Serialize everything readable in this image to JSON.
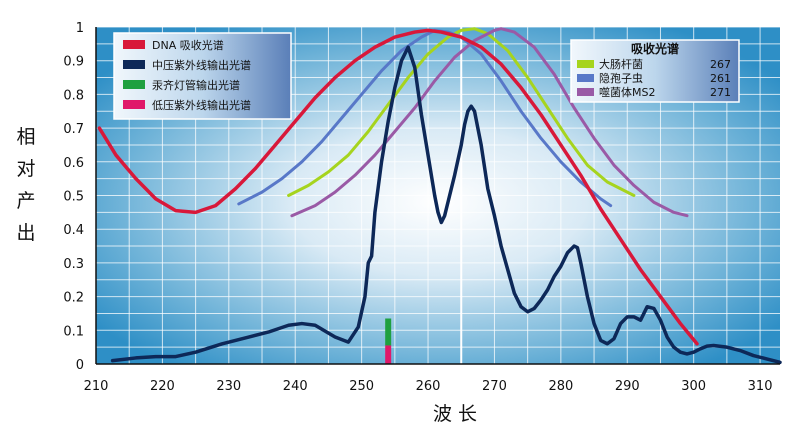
{
  "chart_data": {
    "type": "line",
    "xlabel": "波 长",
    "ylabel": "相对产出",
    "xlim": [
      210,
      313
    ],
    "ylim": [
      0,
      1
    ],
    "xticks": [
      "210",
      "220",
      "230",
      "240",
      "250",
      "260",
      "270",
      "280",
      "290",
      "300",
      "310"
    ],
    "yticks": [
      "0",
      "0.1",
      "0.2",
      "0.3",
      "0.4",
      "0.5",
      "0.6",
      "0.7",
      "0.8",
      "0.9",
      "1"
    ],
    "grid": true,
    "reference_line_x": 265,
    "series": [
      {
        "name": "DNA 吸收光谱",
        "color": "#d8183a",
        "points": [
          [
            210.5,
            0.7
          ],
          [
            213,
            0.62
          ],
          [
            216,
            0.55
          ],
          [
            219,
            0.49
          ],
          [
            222,
            0.455
          ],
          [
            225,
            0.45
          ],
          [
            228,
            0.47
          ],
          [
            231,
            0.52
          ],
          [
            234,
            0.58
          ],
          [
            237,
            0.65
          ],
          [
            240,
            0.72
          ],
          [
            243,
            0.79
          ],
          [
            246,
            0.85
          ],
          [
            249,
            0.9
          ],
          [
            252,
            0.94
          ],
          [
            255,
            0.97
          ],
          [
            258,
            0.985
          ],
          [
            260,
            0.99
          ],
          [
            262,
            0.985
          ],
          [
            265,
            0.97
          ],
          [
            268,
            0.94
          ],
          [
            271,
            0.89
          ],
          [
            274,
            0.82
          ],
          [
            277,
            0.74
          ],
          [
            280,
            0.65
          ],
          [
            283,
            0.56
          ],
          [
            286,
            0.46
          ],
          [
            289,
            0.37
          ],
          [
            292,
            0.28
          ],
          [
            295,
            0.2
          ],
          [
            298,
            0.12
          ],
          [
            300.5,
            0.06
          ]
        ]
      },
      {
        "name": "中压紫外线输出光谱",
        "color": "#0d2858",
        "points": [
          [
            212.5,
            0.01
          ],
          [
            216,
            0.018
          ],
          [
            219,
            0.022
          ],
          [
            222,
            0.022
          ],
          [
            225,
            0.035
          ],
          [
            229,
            0.06
          ],
          [
            233,
            0.08
          ],
          [
            236,
            0.095
          ],
          [
            239,
            0.115
          ],
          [
            241,
            0.12
          ],
          [
            243,
            0.115
          ],
          [
            246,
            0.08
          ],
          [
            248,
            0.065
          ],
          [
            249.5,
            0.11
          ],
          [
            250.5,
            0.2
          ],
          [
            251,
            0.3
          ],
          [
            251.5,
            0.32
          ],
          [
            252,
            0.45
          ],
          [
            253,
            0.6
          ],
          [
            254,
            0.72
          ],
          [
            255,
            0.82
          ],
          [
            256,
            0.9
          ],
          [
            257,
            0.94
          ],
          [
            258,
            0.88
          ],
          [
            259,
            0.74
          ],
          [
            260,
            0.62
          ],
          [
            261,
            0.5
          ],
          [
            261.5,
            0.45
          ],
          [
            262,
            0.42
          ],
          [
            262.5,
            0.44
          ],
          [
            263,
            0.48
          ],
          [
            264,
            0.56
          ],
          [
            265,
            0.65
          ],
          [
            265.5,
            0.71
          ],
          [
            266,
            0.75
          ],
          [
            266.5,
            0.765
          ],
          [
            267,
            0.75
          ],
          [
            268,
            0.65
          ],
          [
            269,
            0.52
          ],
          [
            270,
            0.44
          ],
          [
            271,
            0.35
          ],
          [
            272,
            0.28
          ],
          [
            273,
            0.21
          ],
          [
            274,
            0.17
          ],
          [
            275,
            0.155
          ],
          [
            276,
            0.165
          ],
          [
            277,
            0.19
          ],
          [
            278,
            0.22
          ],
          [
            279,
            0.26
          ],
          [
            280,
            0.29
          ],
          [
            281,
            0.33
          ],
          [
            282,
            0.35
          ],
          [
            282.5,
            0.345
          ],
          [
            283,
            0.3
          ],
          [
            284,
            0.2
          ],
          [
            285,
            0.12
          ],
          [
            286,
            0.07
          ],
          [
            287,
            0.06
          ],
          [
            288,
            0.075
          ],
          [
            289,
            0.12
          ],
          [
            290,
            0.14
          ],
          [
            291,
            0.14
          ],
          [
            292,
            0.13
          ],
          [
            292.5,
            0.15
          ],
          [
            293,
            0.17
          ],
          [
            294,
            0.165
          ],
          [
            295,
            0.13
          ],
          [
            296,
            0.08
          ],
          [
            297,
            0.05
          ],
          [
            298,
            0.035
          ],
          [
            299,
            0.03
          ],
          [
            300,
            0.035
          ],
          [
            301,
            0.045
          ],
          [
            302,
            0.053
          ],
          [
            303,
            0.055
          ],
          [
            305,
            0.05
          ],
          [
            307,
            0.04
          ],
          [
            309,
            0.025
          ],
          [
            311,
            0.015
          ],
          [
            313,
            0.005
          ]
        ]
      },
      {
        "name": "汞齐灯管输出光谱",
        "color": "#1fa040",
        "points": [
          [
            254,
            0.055
          ],
          [
            254,
            0.135
          ]
        ]
      },
      {
        "name": "低压紫外线输出光谱",
        "color": "#e0186a",
        "points": [
          [
            254,
            0.0
          ],
          [
            254,
            0.055
          ]
        ]
      }
    ],
    "action_spectra": {
      "title": "吸收光谱",
      "series": [
        {
          "name": "大肠杆菌",
          "value": "267",
          "color": "#a6d41e",
          "points": [
            [
              239,
              0.5
            ],
            [
              242,
              0.53
            ],
            [
              245,
              0.57
            ],
            [
              248,
              0.62
            ],
            [
              251,
              0.69
            ],
            [
              254,
              0.77
            ],
            [
              257,
              0.85
            ],
            [
              260,
              0.92
            ],
            [
              263,
              0.97
            ],
            [
              265,
              0.99
            ],
            [
              267,
              0.995
            ],
            [
              269,
              0.98
            ],
            [
              272,
              0.93
            ],
            [
              275,
              0.85
            ],
            [
              278,
              0.76
            ],
            [
              281,
              0.67
            ],
            [
              284,
              0.59
            ],
            [
              287,
              0.54
            ],
            [
              290,
              0.51
            ],
            [
              291,
              0.5
            ]
          ]
        },
        {
          "name": "隐孢子虫",
          "value": "261",
          "color": "#5878c8",
          "points": [
            [
              231.5,
              0.475
            ],
            [
              235,
              0.51
            ],
            [
              238,
              0.55
            ],
            [
              241,
              0.6
            ],
            [
              244,
              0.66
            ],
            [
              247,
              0.73
            ],
            [
              250,
              0.8
            ],
            [
              253,
              0.87
            ],
            [
              256,
              0.93
            ],
            [
              259,
              0.97
            ],
            [
              261,
              0.99
            ],
            [
              263,
              0.985
            ],
            [
              265,
              0.97
            ],
            [
              268,
              0.92
            ],
            [
              271,
              0.84
            ],
            [
              274,
              0.75
            ],
            [
              277,
              0.67
            ],
            [
              280,
              0.6
            ],
            [
              283,
              0.54
            ],
            [
              286,
              0.49
            ],
            [
              287.5,
              0.47
            ]
          ]
        },
        {
          "name": "噬菌体MS2",
          "value": "271",
          "color": "#9a5aa6",
          "points": [
            [
              239.5,
              0.44
            ],
            [
              243,
              0.47
            ],
            [
              246,
              0.51
            ],
            [
              249,
              0.56
            ],
            [
              252,
              0.62
            ],
            [
              255,
              0.69
            ],
            [
              258,
              0.76
            ],
            [
              261,
              0.84
            ],
            [
              264,
              0.91
            ],
            [
              267,
              0.96
            ],
            [
              270,
              0.99
            ],
            [
              271,
              0.995
            ],
            [
              273,
              0.985
            ],
            [
              276,
              0.94
            ],
            [
              279,
              0.86
            ],
            [
              282,
              0.76
            ],
            [
              285,
              0.67
            ],
            [
              288,
              0.59
            ],
            [
              291,
              0.53
            ],
            [
              294,
              0.48
            ],
            [
              297,
              0.45
            ],
            [
              299,
              0.44
            ]
          ]
        }
      ]
    }
  }
}
